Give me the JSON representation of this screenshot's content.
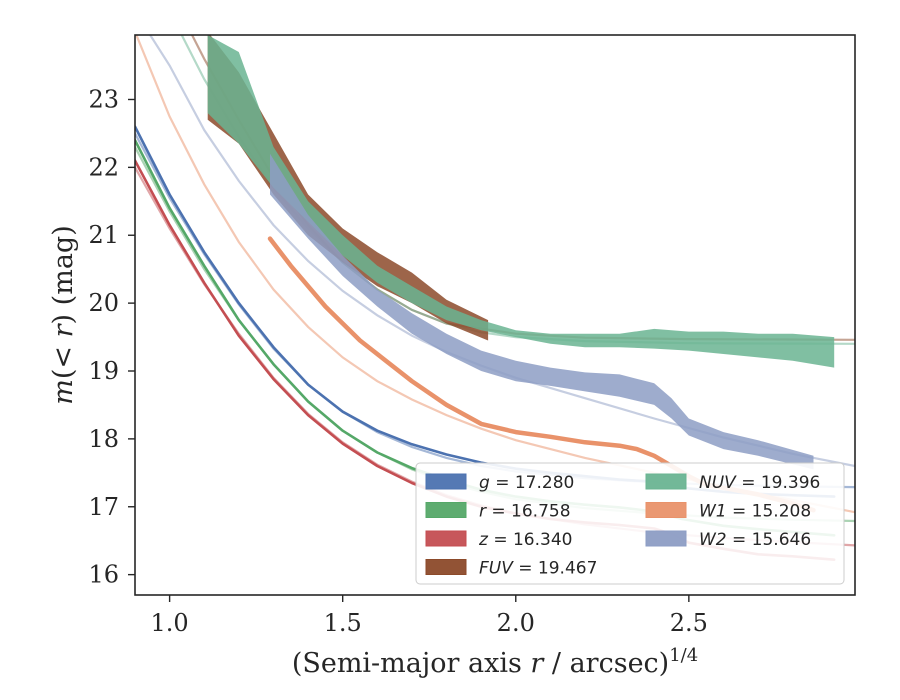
{
  "chart_data": {
    "type": "line",
    "xlabel": "(Semi-major axis r / arcsec)^1/4",
    "ylabel": "m(< r) (mag)",
    "xlim": [
      0.9,
      2.98
    ],
    "ylim": [
      23.95,
      15.7
    ],
    "y_inverted": true,
    "x_ticks": [
      1.0,
      1.5,
      2.0,
      2.5
    ],
    "x_tick_labels": [
      "1.0",
      "1.5",
      "2.0",
      "2.5"
    ],
    "y_ticks": [
      16,
      17,
      18,
      19,
      20,
      21,
      22,
      23
    ],
    "y_tick_labels": [
      "16",
      "17",
      "18",
      "19",
      "20",
      "21",
      "22",
      "23"
    ],
    "grid": false,
    "legend": {
      "placement": "lower-right",
      "entries": [
        {
          "prefix": "g",
          "suffix": " = 17.280",
          "color": "#4c72b0"
        },
        {
          "prefix": "r",
          "suffix": " = 16.758",
          "color": "#55a868"
        },
        {
          "prefix": "z",
          "suffix": " = 16.340",
          "color": "#c44e52"
        },
        {
          "prefix": "FUV",
          "suffix": " = 19.467",
          "color": "#8c4a2a"
        },
        {
          "prefix": "NUV",
          "suffix": " = 19.396",
          "color": "#6ab492"
        },
        {
          "prefix": "W1",
          "suffix": " = 15.208",
          "color": "#e9926a"
        },
        {
          "prefix": "W2",
          "suffix": " = 15.646",
          "color": "#8d9dc4"
        }
      ]
    },
    "series": [
      {
        "name": "g = 17.280",
        "color": "#4c72b0",
        "data": [
          [
            0.9,
            22.6
          ],
          [
            1.0,
            21.6
          ],
          [
            1.1,
            20.75
          ],
          [
            1.2,
            20.0
          ],
          [
            1.3,
            19.35
          ],
          [
            1.4,
            18.8
          ],
          [
            1.5,
            18.4
          ],
          [
            1.6,
            18.12
          ],
          [
            1.7,
            17.92
          ],
          [
            1.8,
            17.77
          ],
          [
            1.9,
            17.65
          ],
          [
            2.0,
            17.56
          ],
          [
            2.1,
            17.5
          ],
          [
            2.2,
            17.45
          ],
          [
            2.3,
            17.4
          ],
          [
            2.4,
            17.37
          ],
          [
            2.5,
            17.27
          ],
          [
            2.6,
            17.22
          ],
          [
            2.7,
            17.19
          ],
          [
            2.8,
            17.17
          ],
          [
            2.92,
            17.15
          ]
        ],
        "model": [
          [
            0.9,
            22.5
          ],
          [
            1.0,
            21.55
          ],
          [
            1.1,
            20.72
          ],
          [
            1.2,
            19.98
          ],
          [
            1.3,
            19.33
          ],
          [
            1.4,
            18.8
          ],
          [
            1.5,
            18.4
          ],
          [
            1.6,
            18.1
          ],
          [
            1.7,
            17.88
          ],
          [
            1.8,
            17.72
          ],
          [
            1.9,
            17.6
          ],
          [
            2.0,
            17.52
          ],
          [
            2.2,
            17.42
          ],
          [
            2.4,
            17.36
          ],
          [
            2.6,
            17.32
          ],
          [
            2.8,
            17.3
          ],
          [
            2.98,
            17.29
          ]
        ]
      },
      {
        "name": "r = 16.758",
        "color": "#55a868",
        "data": [
          [
            0.9,
            22.4
          ],
          [
            1.0,
            21.4
          ],
          [
            1.1,
            20.55
          ],
          [
            1.2,
            19.75
          ],
          [
            1.3,
            19.1
          ],
          [
            1.4,
            18.55
          ],
          [
            1.5,
            18.12
          ],
          [
            1.6,
            17.8
          ],
          [
            1.7,
            17.57
          ],
          [
            1.8,
            17.4
          ],
          [
            1.9,
            17.25
          ],
          [
            2.0,
            17.15
          ],
          [
            2.1,
            17.08
          ],
          [
            2.2,
            17.03
          ],
          [
            2.3,
            16.99
          ],
          [
            2.4,
            16.93
          ],
          [
            2.48,
            16.82
          ],
          [
            2.6,
            16.72
          ],
          [
            2.7,
            16.67
          ],
          [
            2.8,
            16.63
          ],
          [
            2.92,
            16.58
          ]
        ],
        "model": [
          [
            0.9,
            22.3
          ],
          [
            1.0,
            21.35
          ],
          [
            1.1,
            20.5
          ],
          [
            1.2,
            19.75
          ],
          [
            1.3,
            19.1
          ],
          [
            1.4,
            18.55
          ],
          [
            1.5,
            18.12
          ],
          [
            1.6,
            17.8
          ],
          [
            1.7,
            17.55
          ],
          [
            1.8,
            17.36
          ],
          [
            1.9,
            17.22
          ],
          [
            2.0,
            17.11
          ],
          [
            2.2,
            16.98
          ],
          [
            2.4,
            16.9
          ],
          [
            2.6,
            16.84
          ],
          [
            2.8,
            16.81
          ],
          [
            2.98,
            16.79
          ]
        ]
      },
      {
        "name": "z = 16.340",
        "color": "#c44e52",
        "data": [
          [
            0.9,
            22.1
          ],
          [
            1.0,
            21.15
          ],
          [
            1.1,
            20.3
          ],
          [
            1.2,
            19.52
          ],
          [
            1.3,
            18.88
          ],
          [
            1.4,
            18.35
          ],
          [
            1.5,
            17.93
          ],
          [
            1.6,
            17.6
          ],
          [
            1.7,
            17.35
          ],
          [
            1.8,
            17.15
          ],
          [
            1.9,
            17.0
          ],
          [
            2.0,
            16.9
          ],
          [
            2.1,
            16.82
          ],
          [
            2.2,
            16.77
          ],
          [
            2.3,
            16.73
          ],
          [
            2.4,
            16.68
          ],
          [
            2.45,
            16.6
          ],
          [
            2.5,
            16.47
          ],
          [
            2.6,
            16.38
          ],
          [
            2.7,
            16.3
          ],
          [
            2.8,
            16.27
          ],
          [
            2.92,
            16.22
          ]
        ],
        "model": [
          [
            0.9,
            22.0
          ],
          [
            1.0,
            21.1
          ],
          [
            1.1,
            20.28
          ],
          [
            1.2,
            19.55
          ],
          [
            1.3,
            18.9
          ],
          [
            1.4,
            18.37
          ],
          [
            1.5,
            17.95
          ],
          [
            1.6,
            17.62
          ],
          [
            1.7,
            17.37
          ],
          [
            1.8,
            17.17
          ],
          [
            1.9,
            17.02
          ],
          [
            2.0,
            16.9
          ],
          [
            2.2,
            16.74
          ],
          [
            2.4,
            16.62
          ],
          [
            2.6,
            16.54
          ],
          [
            2.8,
            16.48
          ],
          [
            2.98,
            16.43
          ]
        ]
      },
      {
        "name": "FUV = 19.467",
        "color": "#8c4a2a",
        "band_upper": [
          [
            1.11,
            22.7
          ],
          [
            1.2,
            22.35
          ],
          [
            1.3,
            21.6
          ],
          [
            1.4,
            21.0
          ],
          [
            1.5,
            20.6
          ],
          [
            1.6,
            20.25
          ],
          [
            1.7,
            20.0
          ],
          [
            1.8,
            19.7
          ],
          [
            1.92,
            19.45
          ]
        ],
        "band_lower": [
          [
            1.11,
            24.0
          ],
          [
            1.2,
            23.4
          ],
          [
            1.3,
            22.5
          ],
          [
            1.4,
            21.6
          ],
          [
            1.5,
            21.1
          ],
          [
            1.6,
            20.75
          ],
          [
            1.7,
            20.45
          ],
          [
            1.8,
            20.05
          ],
          [
            1.92,
            19.75
          ]
        ],
        "model": [
          [
            1.0,
            24.6
          ],
          [
            1.1,
            23.6
          ],
          [
            1.2,
            22.7
          ],
          [
            1.3,
            21.85
          ],
          [
            1.4,
            21.15
          ],
          [
            1.5,
            20.6
          ],
          [
            1.6,
            20.2
          ],
          [
            1.7,
            19.9
          ],
          [
            1.8,
            19.7
          ],
          [
            2.0,
            19.55
          ],
          [
            2.2,
            19.49
          ],
          [
            2.5,
            19.47
          ],
          [
            2.98,
            19.46
          ]
        ]
      },
      {
        "name": "NUV = 19.396",
        "color": "#6ab492",
        "band_upper": [
          [
            1.11,
            22.8
          ],
          [
            1.2,
            22.35
          ],
          [
            1.3,
            21.7
          ],
          [
            1.4,
            21.2
          ],
          [
            1.5,
            20.7
          ],
          [
            1.6,
            20.3
          ],
          [
            1.7,
            20.0
          ],
          [
            1.8,
            19.75
          ],
          [
            1.9,
            19.6
          ],
          [
            2.0,
            19.5
          ],
          [
            2.1,
            19.4
          ],
          [
            2.2,
            19.35
          ],
          [
            2.3,
            19.35
          ],
          [
            2.4,
            19.33
          ],
          [
            2.5,
            19.3
          ],
          [
            2.6,
            19.25
          ],
          [
            2.7,
            19.2
          ],
          [
            2.8,
            19.15
          ],
          [
            2.92,
            19.05
          ]
        ],
        "band_lower": [
          [
            1.11,
            23.95
          ],
          [
            1.2,
            23.7
          ],
          [
            1.3,
            22.3
          ],
          [
            1.4,
            21.5
          ],
          [
            1.5,
            21.0
          ],
          [
            1.6,
            20.55
          ],
          [
            1.7,
            20.25
          ],
          [
            1.8,
            19.95
          ],
          [
            1.9,
            19.75
          ],
          [
            2.0,
            19.6
          ],
          [
            2.1,
            19.55
          ],
          [
            2.2,
            19.55
          ],
          [
            2.3,
            19.55
          ],
          [
            2.4,
            19.62
          ],
          [
            2.5,
            19.58
          ],
          [
            2.6,
            19.58
          ],
          [
            2.7,
            19.55
          ],
          [
            2.8,
            19.55
          ],
          [
            2.92,
            19.5
          ]
        ],
        "model": [
          [
            0.9,
            25.0
          ],
          [
            1.0,
            24.3
          ],
          [
            1.1,
            23.3
          ],
          [
            1.2,
            22.45
          ],
          [
            1.3,
            21.7
          ],
          [
            1.4,
            21.1
          ],
          [
            1.5,
            20.6
          ],
          [
            1.6,
            20.2
          ],
          [
            1.7,
            19.9
          ],
          [
            1.8,
            19.7
          ],
          [
            1.9,
            19.57
          ],
          [
            2.0,
            19.5
          ],
          [
            2.2,
            19.44
          ],
          [
            2.5,
            19.41
          ],
          [
            2.98,
            19.4
          ]
        ]
      },
      {
        "name": "W1 = 15.208",
        "color": "#e9926a",
        "data": [
          [
            1.29,
            20.95
          ],
          [
            1.35,
            20.55
          ],
          [
            1.45,
            19.95
          ],
          [
            1.55,
            19.45
          ],
          [
            1.7,
            18.85
          ],
          [
            1.8,
            18.5
          ],
          [
            1.9,
            18.22
          ],
          [
            2.0,
            18.1
          ],
          [
            2.1,
            18.03
          ],
          [
            2.2,
            17.95
          ],
          [
            2.3,
            17.9
          ],
          [
            2.35,
            17.85
          ],
          [
            2.4,
            17.75
          ],
          [
            2.45,
            17.6
          ],
          [
            2.5,
            17.45
          ],
          [
            2.55,
            17.32
          ],
          [
            2.6,
            17.28
          ],
          [
            2.7,
            17.18
          ],
          [
            2.8,
            17.05
          ],
          [
            2.86,
            16.95
          ]
        ],
        "model": [
          [
            0.9,
            24.0
          ],
          [
            1.0,
            22.75
          ],
          [
            1.1,
            21.75
          ],
          [
            1.2,
            20.9
          ],
          [
            1.3,
            20.2
          ],
          [
            1.4,
            19.65
          ],
          [
            1.5,
            19.2
          ],
          [
            1.6,
            18.85
          ],
          [
            1.7,
            18.58
          ],
          [
            1.8,
            18.35
          ],
          [
            1.9,
            18.15
          ],
          [
            2.0,
            17.98
          ],
          [
            2.2,
            17.72
          ],
          [
            2.4,
            17.5
          ],
          [
            2.6,
            17.3
          ],
          [
            2.8,
            17.1
          ],
          [
            2.98,
            16.92
          ]
        ]
      },
      {
        "name": "W2 = 15.646",
        "color": "#8d9dc4",
        "band_upper": [
          [
            1.29,
            21.6
          ],
          [
            1.4,
            20.95
          ],
          [
            1.5,
            20.4
          ],
          [
            1.6,
            19.95
          ],
          [
            1.7,
            19.55
          ],
          [
            1.8,
            19.25
          ],
          [
            1.9,
            19.0
          ],
          [
            2.0,
            18.85
          ],
          [
            2.1,
            18.78
          ],
          [
            2.2,
            18.7
          ],
          [
            2.3,
            18.62
          ],
          [
            2.4,
            18.5
          ],
          [
            2.45,
            18.3
          ],
          [
            2.5,
            18.05
          ],
          [
            2.6,
            17.85
          ],
          [
            2.7,
            17.75
          ],
          [
            2.86,
            17.55
          ]
        ],
        "band_lower": [
          [
            1.29,
            22.2
          ],
          [
            1.4,
            21.3
          ],
          [
            1.5,
            20.7
          ],
          [
            1.6,
            20.2
          ],
          [
            1.7,
            19.85
          ],
          [
            1.8,
            19.55
          ],
          [
            1.9,
            19.3
          ],
          [
            2.0,
            19.15
          ],
          [
            2.1,
            19.05
          ],
          [
            2.2,
            18.98
          ],
          [
            2.3,
            18.95
          ],
          [
            2.4,
            18.82
          ],
          [
            2.45,
            18.6
          ],
          [
            2.5,
            18.3
          ],
          [
            2.6,
            18.1
          ],
          [
            2.7,
            17.98
          ],
          [
            2.86,
            17.75
          ]
        ],
        "model": [
          [
            0.9,
            24.3
          ],
          [
            1.0,
            23.5
          ],
          [
            1.1,
            22.55
          ],
          [
            1.2,
            21.8
          ],
          [
            1.3,
            21.15
          ],
          [
            1.4,
            20.62
          ],
          [
            1.5,
            20.18
          ],
          [
            1.6,
            19.82
          ],
          [
            1.7,
            19.52
          ],
          [
            1.8,
            19.28
          ],
          [
            1.9,
            19.08
          ],
          [
            2.0,
            18.9
          ],
          [
            2.2,
            18.6
          ],
          [
            2.4,
            18.3
          ],
          [
            2.6,
            18.02
          ],
          [
            2.8,
            17.78
          ],
          [
            2.98,
            17.6
          ]
        ]
      }
    ]
  }
}
